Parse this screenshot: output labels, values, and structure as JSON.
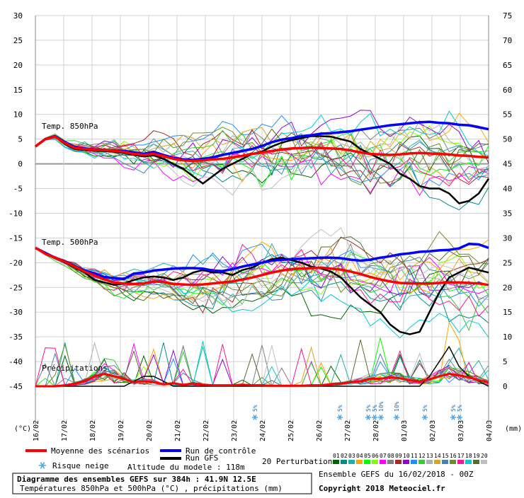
{
  "chart_data": {
    "type": "line",
    "title": "Diagramme des ensembles GEFS sur 384h : 41.9N 12.5E",
    "subtitle": "Températures 850hPa et 500hPa (°C) , précipitations (mm)",
    "left_unit": "(°C)",
    "right_unit": "(mm)",
    "left_ticks": [
      30,
      25,
      20,
      15,
      10,
      5,
      0,
      -5,
      -10,
      -15,
      -20,
      -25,
      -30,
      -35,
      -40,
      -45
    ],
    "right_ticks": [
      75,
      70,
      65,
      60,
      55,
      50,
      45,
      40,
      35,
      30,
      25,
      20,
      15,
      10,
      5,
      0
    ],
    "ylim_left": [
      -45,
      30
    ],
    "ylim_right": [
      0,
      75
    ],
    "x_ticks": [
      "16/02",
      "17/02",
      "18/02",
      "19/02",
      "20/02",
      "21/02",
      "22/02",
      "23/02",
      "24/02",
      "25/02",
      "26/02",
      "27/02",
      "28/02",
      "01/03",
      "02/03",
      "03/03",
      "04/03"
    ],
    "panel_labels": {
      "t850": "Temp. 850hPa",
      "t500": "Temp. 500hPa",
      "precip": "Précipitations"
    },
    "t850": {
      "mean": [
        3.5,
        5,
        5.5,
        4.2,
        3.2,
        3,
        2.8,
        2.8,
        2.6,
        2.4,
        2,
        1.8,
        2,
        1.6,
        1,
        0.7,
        0.6,
        0.7,
        0.9,
        1,
        1.3,
        1.6,
        2,
        2.3,
        2.6,
        2.9,
        3.1,
        3.2,
        3.3,
        3.2,
        3.1,
        3,
        2.7,
        2.3,
        2,
        1.9,
        1.8,
        1.9,
        2.1,
        2.2,
        2.1,
        2,
        1.9,
        1.7,
        1.6,
        1.4,
        1.3
      ],
      "control": [
        3.5,
        5,
        5.6,
        4.4,
        3.4,
        3.1,
        2.9,
        2.8,
        2.7,
        2.6,
        2.3,
        2,
        2.4,
        1.8,
        1.2,
        0.9,
        0.8,
        1,
        1.3,
        1.8,
        2.2,
        2.6,
        3,
        3.6,
        4.4,
        4.9,
        5.2,
        5.6,
        5.8,
        6.1,
        6.2,
        6.4,
        6.6,
        6.9,
        7.2,
        7.5,
        7.8,
        8,
        8.2,
        8.4,
        8.5,
        8.3,
        8.2,
        7.9,
        7.8,
        7.4,
        7
      ],
      "gfs": [
        3.5,
        5,
        5.5,
        4,
        3,
        2.8,
        2.6,
        2.6,
        2.4,
        2.2,
        1.8,
        1.5,
        1.7,
        1,
        0,
        -1,
        -2.5,
        -4,
        -2.5,
        -1,
        0,
        1,
        2,
        2.5,
        3.5,
        4.3,
        4.8,
        5.2,
        5.6,
        5.6,
        5.5,
        5,
        4.5,
        3,
        2,
        1,
        0,
        -2,
        -3,
        -4.5,
        -5,
        -5,
        -6,
        -8,
        -7.5,
        -6,
        -3
      ]
    },
    "t500": {
      "mean": [
        -17,
        -18.2,
        -19,
        -19.8,
        -20.8,
        -21.8,
        -22.6,
        -23.4,
        -24,
        -24.2,
        -24.3,
        -24.2,
        -23.8,
        -23.9,
        -24.3,
        -24.4,
        -24.5,
        -24.4,
        -24.2,
        -24,
        -23.8,
        -23.4,
        -23,
        -22.5,
        -22,
        -21.6,
        -21.3,
        -21.2,
        -21.1,
        -21,
        -21.2,
        -21.4,
        -21.8,
        -22.3,
        -22.9,
        -23.4,
        -23.8,
        -24.1,
        -24.2,
        -24.2,
        -24.2,
        -24.1,
        -24,
        -24,
        -24.1,
        -24.2,
        -24.5
      ],
      "control": [
        -17,
        -18,
        -19,
        -19.7,
        -20.7,
        -21.6,
        -22.2,
        -22.9,
        -23.1,
        -23.3,
        -22.2,
        -22,
        -21.6,
        -21.4,
        -21.2,
        -21.1,
        -21.1,
        -21.2,
        -21.6,
        -21.7,
        -21.3,
        -20.8,
        -20.4,
        -20,
        -19.6,
        -19.4,
        -19.3,
        -19.2,
        -19.1,
        -19,
        -19,
        -19.1,
        -19.4,
        -19.6,
        -19.4,
        -19,
        -18.7,
        -18.3,
        -18.1,
        -17.8,
        -17.7,
        -17.5,
        -17.4,
        -17.1,
        -16.2,
        -16.3,
        -17
      ],
      "gfs": [
        -17,
        -18,
        -19,
        -20,
        -21,
        -22,
        -23.5,
        -24,
        -24.5,
        -24.2,
        -23.5,
        -23,
        -22.8,
        -23,
        -23.5,
        -23,
        -22,
        -21.5,
        -22,
        -22,
        -22.5,
        -21.5,
        -21,
        -20,
        -19.3,
        -19,
        -19.5,
        -20,
        -20.8,
        -21.2,
        -21.8,
        -23,
        -25,
        -27,
        -28.5,
        -30,
        -32.5,
        -34,
        -34.5,
        -34,
        -30,
        -26,
        -23,
        -22,
        -21,
        -21.5,
        -22
      ]
    },
    "precip": {
      "mean": [
        0,
        0,
        0,
        0.2,
        0.5,
        1,
        2,
        2.5,
        2,
        1.5,
        0.8,
        1,
        0.8,
        0.4,
        0.6,
        0.3,
        0.5,
        0.3,
        0.2,
        0.2,
        0.2,
        0.3,
        0.2,
        0.2,
        0.1,
        0.1,
        0.1,
        0.1,
        0.2,
        0.2,
        0.4,
        0.5,
        0.8,
        1,
        1.5,
        1.5,
        1.8,
        1.6,
        1.2,
        1,
        1.4,
        2,
        2.5,
        2.2,
        1.8,
        1.2,
        0.8
      ],
      "gfs": [
        0,
        0,
        0,
        0,
        0,
        0,
        0,
        0,
        0,
        0,
        1,
        2,
        2,
        1,
        0,
        0,
        0,
        0,
        0,
        0,
        0,
        0,
        0,
        0,
        0,
        0,
        0,
        0,
        0,
        0,
        0,
        0,
        0,
        0,
        0,
        0,
        0,
        0,
        0,
        0,
        2,
        5,
        8,
        4,
        2,
        1,
        0
      ]
    },
    "snow_risk": [
      {
        "date": "23/02",
        "value": "5%"
      },
      {
        "date": "26/02",
        "value": "5%"
      },
      {
        "date": "27/02",
        "value": "5%"
      },
      {
        "date": "27/02",
        "value": "5%"
      },
      {
        "date": "27/02",
        "value": "10%"
      },
      {
        "date": "28/02",
        "value": "10%"
      },
      {
        "date": "01/03",
        "value": "5%"
      },
      {
        "date": "02/03",
        "value": "5%"
      },
      {
        "date": "02/03",
        "value": "5%"
      }
    ],
    "legend": {
      "mean": "Moyenne des scénarios",
      "control": "Run de contrôle",
      "gfs": "Run GFS",
      "snow": "Risque neige",
      "altitude": "Altitude du modele : 118m",
      "perturbations": "20 Perturbations",
      "perturbation_ids": [
        "01",
        "02",
        "03",
        "04",
        "05",
        "06",
        "07",
        "08",
        "09",
        "10",
        "11",
        "12",
        "13",
        "14",
        "15",
        "16",
        "17",
        "18",
        "19",
        "20"
      ]
    },
    "colors": {
      "mean": "#ff0000",
      "control": "#0000ff",
      "gfs": "#000000",
      "zero_line": "#999999",
      "grid": "#d0d0d0",
      "snow": "#4fa8e8",
      "perturbations": [
        "#006400",
        "#008b8b",
        "#20b2aa",
        "#ffa500",
        "#00ff00",
        "#7fff00",
        "#ff00ff",
        "#808080",
        "#a52a2a",
        "#9400d3",
        "#1e90ff",
        "#32cd32",
        "#b0b0b0",
        "#daa520",
        "#4682b4",
        "#6b8e23",
        "#ff1493",
        "#00ced1",
        "#556b2f",
        "#c0c0c0"
      ]
    }
  },
  "footer": {
    "title": "Diagramme des ensembles GEFS sur 384h : 41.9N 12.5E",
    "subtitle": "Températures 850hPa et 500hPa (°C) , précipitations (mm)",
    "run_info": "Ensemble GEFS du 16/02/2018 - 00Z",
    "copyright": "Copyright 2018 Meteociel.fr"
  }
}
